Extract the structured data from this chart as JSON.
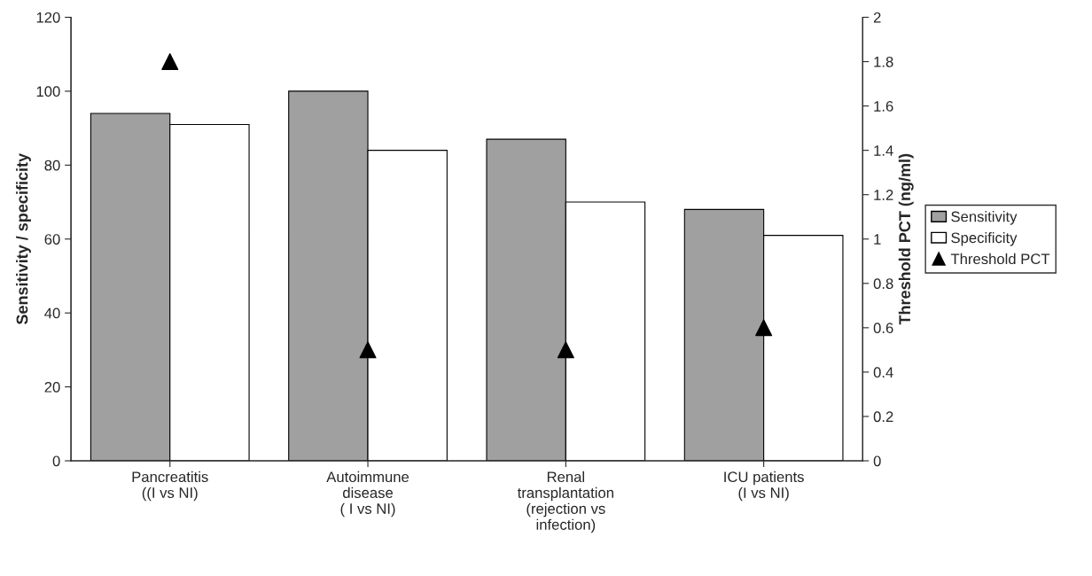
{
  "chart_data": {
    "type": "bar",
    "categories": [
      "Pancreatitis\n((I vs NI)",
      "Autoimmune\ndisease\n( I vs NI)",
      "Renal\ntransplantation\n(rejection vs\ninfection)",
      "ICU patients\n(I vs NI)"
    ],
    "series": [
      {
        "name": "Sensitivity",
        "color": "#a0a0a0",
        "values": [
          94,
          100,
          87,
          68
        ]
      },
      {
        "name": "Specificity",
        "color": "#ffffff",
        "values": [
          91,
          84,
          70,
          61
        ]
      },
      {
        "name": "Threshold PCT",
        "type": "scatter",
        "axis": "y2",
        "marker": "triangle",
        "color": "#000000",
        "values": [
          1.8,
          0.5,
          0.5,
          0.6
        ]
      }
    ],
    "ylabel": "Sensitivity / specificity",
    "y2label": "Threshold PCT (ng/ml)",
    "ylim": [
      0,
      120
    ],
    "yticks": [
      0,
      20,
      40,
      60,
      80,
      100,
      120
    ],
    "y2lim": [
      0,
      2
    ],
    "y2ticks": [
      0,
      0.2,
      0.4,
      0.6,
      0.8,
      1,
      1.2,
      1.4,
      1.6,
      1.8,
      2
    ],
    "grid": false,
    "legend": "right"
  }
}
